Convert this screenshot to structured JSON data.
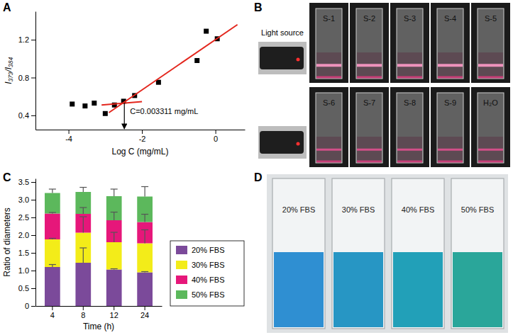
{
  "chart_data": [
    {
      "type": "scatter",
      "panel_label": "A",
      "x_label": "Log C (mg/mL)",
      "y_label": "I₃₇₃/I₃₈₄",
      "xlim": [
        -4.9,
        0.8
      ],
      "ylim": [
        0.25,
        1.5
      ],
      "xticks": [
        -4,
        -2,
        0
      ],
      "yticks": [
        0.4,
        0.8,
        1.2
      ],
      "grid": false,
      "series": [
        {
          "type": "scatter",
          "marker": "square",
          "color": "#000000",
          "x": [
            -3.9,
            -3.55,
            -3.3,
            -3.0,
            -2.75,
            -2.5,
            -2.2,
            -1.55,
            -0.5,
            -0.25,
            0.05
          ],
          "values": [
            0.52,
            0.5,
            0.53,
            0.42,
            0.51,
            0.55,
            0.61,
            0.75,
            0.98,
            1.29,
            1.21
          ]
        },
        {
          "type": "line",
          "line_style": "solid",
          "color": "#e3261d",
          "x": [
            -3.1,
            -2.0
          ],
          "values": [
            0.51,
            0.545
          ]
        },
        {
          "type": "line",
          "line_style": "solid",
          "color": "#e3261d",
          "x": [
            -2.9,
            0.6
          ],
          "values": [
            0.43,
            1.36
          ]
        }
      ],
      "annotations": [
        {
          "text": "C=0.003311 mg/mL",
          "x": -2.48,
          "y": 0.535
        }
      ]
    },
    {
      "type": "bar",
      "stacked": true,
      "panel_label": "C",
      "x_label": "Time (h)",
      "y_label": "Ratio of diameters",
      "categories": [
        "4",
        "8",
        "12",
        "24"
      ],
      "ylim": [
        0,
        3.6
      ],
      "yticks": [
        0,
        0.5,
        {
          "value": 1,
          "label": "1.0"
        },
        1.5,
        {
          "value": 2,
          "label": "2.0"
        },
        2.5,
        {
          "value": 3,
          "label": "3.0"
        },
        3.5
      ],
      "legend": "right",
      "grid": false,
      "series": [
        {
          "name": "20% FBS",
          "color": "#7b4a9a",
          "values": [
            1.1,
            1.22,
            1.03,
            0.95
          ],
          "errors": [
            0.07,
            0.42,
            0.02,
            0.02
          ]
        },
        {
          "name": "30% FBS",
          "color": "#f3ec19",
          "values": [
            0.78,
            0.85,
            0.77,
            0.82
          ],
          "errors": [
            0.03,
            0.45,
            0.28,
            0.38
          ]
        },
        {
          "name": "40% FBS",
          "color": "#e6177a",
          "values": [
            0.73,
            0.53,
            0.62,
            0.6
          ],
          "errors": [
            0.03,
            0.18,
            0.23,
            0.22
          ]
        },
        {
          "name": "50% FBS",
          "color": "#5cb85c",
          "values": [
            0.58,
            0.62,
            0.68,
            0.72
          ],
          "errors": [
            0.11,
            0.13,
            0.2,
            0.28
          ]
        }
      ]
    }
  ],
  "photos": [
    {
      "panel_label": "B",
      "light_source": "Light source",
      "cuvettes": [
        "S-1",
        "S-2",
        "S-3",
        "S-4",
        "S-5",
        "S-6",
        "S-7",
        "S-8",
        "S-9",
        "H₂O"
      ]
    },
    {
      "panel_label": "D",
      "cuvettes": [
        "20% FBS",
        "30% FBS",
        "40% FBS",
        "50% FBS"
      ]
    }
  ]
}
